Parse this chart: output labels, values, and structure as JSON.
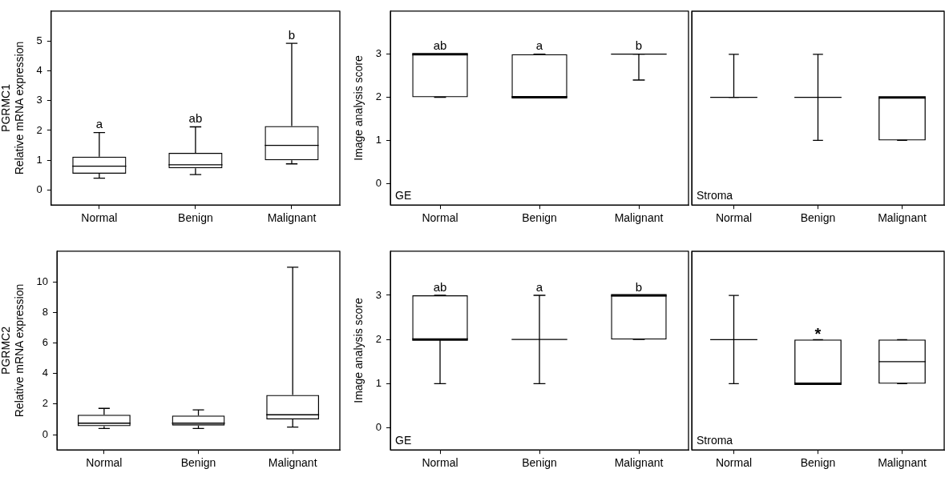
{
  "chart_data": [
    {
      "type": "box",
      "ylabel": "PGRMC1\nRelative mRNA expression",
      "categories": [
        "Normal",
        "Benign",
        "Malignant"
      ],
      "ylim": [
        -0.5,
        6
      ],
      "yticks": [
        0,
        1,
        2,
        3,
        4,
        5
      ],
      "grid": false,
      "boxes": [
        {
          "low": 0.4,
          "q1": 0.55,
          "median": 0.8,
          "q3": 1.12,
          "high": 1.93
        },
        {
          "low": 0.52,
          "q1": 0.73,
          "median": 0.85,
          "q3": 1.25,
          "high": 2.12
        },
        {
          "low": 0.88,
          "q1": 1.0,
          "median": 1.5,
          "q3": 2.15,
          "high": 4.92
        }
      ],
      "annotations": [
        "a",
        "ab",
        "b"
      ]
    },
    {
      "type": "box",
      "title": "GE",
      "ylabel": "Image analysis score",
      "categories": [
        "Normal",
        "Benign",
        "Malignant"
      ],
      "ylim": [
        -0.5,
        4
      ],
      "yticks": [
        0,
        1,
        2,
        3
      ],
      "grid": false,
      "boxes": [
        {
          "low": 2,
          "q1": 2,
          "median": 3,
          "q3": 3,
          "high": 3
        },
        {
          "low": 2,
          "q1": 2,
          "median": 2,
          "q3": 3,
          "high": 3
        },
        {
          "low": 2.4,
          "q1": 3,
          "median": 3,
          "q3": 3,
          "high": 3
        }
      ],
      "annotations": [
        "ab",
        "a",
        "b"
      ]
    },
    {
      "type": "box",
      "title": "Stroma",
      "categories": [
        "Normal",
        "Benign",
        "Malignant"
      ],
      "ylim": [
        -0.5,
        4
      ],
      "tick_labels": "x",
      "grid": false,
      "boxes": [
        {
          "low": 2,
          "q1": 2,
          "median": 2,
          "q3": 2,
          "high": 3
        },
        {
          "low": 1,
          "q1": 2,
          "median": 2,
          "q3": 2,
          "high": 3
        },
        {
          "low": 1,
          "q1": 1,
          "median": 2,
          "q3": 2,
          "high": 2
        }
      ]
    },
    {
      "type": "box",
      "ylabel": "PGRMC2\nRelative mRNA expression",
      "categories": [
        "Normal",
        "Benign",
        "Malignant"
      ],
      "ylim": [
        -1,
        12
      ],
      "yticks": [
        0,
        2,
        4,
        6,
        8,
        10
      ],
      "grid": false,
      "boxes": [
        {
          "low": 0.4,
          "q1": 0.55,
          "median": 0.75,
          "q3": 1.3,
          "high": 1.72
        },
        {
          "low": 0.4,
          "q1": 0.6,
          "median": 0.75,
          "q3": 1.25,
          "high": 1.62
        },
        {
          "low": 0.5,
          "q1": 1.0,
          "median": 1.3,
          "q3": 2.6,
          "high": 10.95
        }
      ]
    },
    {
      "type": "box",
      "title": "GE",
      "ylabel": "Image analysis score",
      "categories": [
        "Normal",
        "Benign",
        "Malignant"
      ],
      "ylim": [
        -0.5,
        4
      ],
      "yticks": [
        0,
        1,
        2,
        3
      ],
      "grid": false,
      "boxes": [
        {
          "low": 1,
          "q1": 2,
          "median": 2,
          "q3": 3,
          "high": 3
        },
        {
          "low": 1,
          "q1": 2,
          "median": 2,
          "q3": 2,
          "high": 3
        },
        {
          "low": 2,
          "q1": 2,
          "median": 3,
          "q3": 3,
          "high": 3
        }
      ],
      "annotations": [
        "ab",
        "a",
        "b"
      ]
    },
    {
      "type": "box",
      "title": "Stroma",
      "categories": [
        "Normal",
        "Benign",
        "Malignant"
      ],
      "ylim": [
        -0.5,
        4
      ],
      "tick_labels": "x",
      "grid": false,
      "boxes": [
        {
          "low": 1,
          "q1": 2,
          "median": 2,
          "q3": 2,
          "high": 3
        },
        {
          "low": 1,
          "q1": 1,
          "median": 1,
          "q3": 2,
          "high": 2
        },
        {
          "low": 1,
          "q1": 1,
          "median": 1.5,
          "q3": 2,
          "high": 2
        }
      ],
      "annotations": [
        null,
        "*",
        null
      ]
    }
  ]
}
